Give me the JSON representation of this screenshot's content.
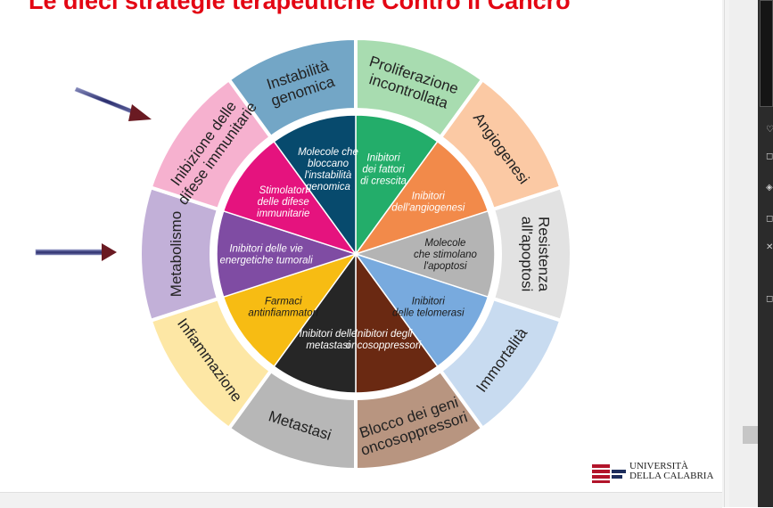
{
  "slide": {
    "title": "Le dieci strategie terapeutiche Contro il Cancro"
  },
  "logo": {
    "line1": "UNIVERSITÀ",
    "line2": "DELLA CALABRIA"
  },
  "wheel": {
    "outer": [
      {
        "lines": [
          "Proliferazione",
          "incontrollata"
        ],
        "color": "#a8dcb0"
      },
      {
        "lines": [
          "Angiogenesi"
        ],
        "color": "#fbc9a4"
      },
      {
        "lines": [
          "Resistenza",
          "all'apoptosi"
        ],
        "color": "#e2e2e2"
      },
      {
        "lines": [
          "Immortalità"
        ],
        "color": "#c8dbf0"
      },
      {
        "lines": [
          "Blocco dei geni",
          "oncosoppressori"
        ],
        "color": "#b89580"
      },
      {
        "lines": [
          "Metastasi"
        ],
        "color": "#b7b7b7"
      },
      {
        "lines": [
          "Infiammazione"
        ],
        "color": "#fde7a5"
      },
      {
        "lines": [
          "Metabolismo"
        ],
        "color": "#c2b0d8"
      },
      {
        "lines": [
          "Inibizione delle",
          "difese immunitarie"
        ],
        "color": "#f6b1cf"
      },
      {
        "lines": [
          "Instabilità",
          "genomica"
        ],
        "color": "#73a6c6"
      }
    ],
    "inner": [
      {
        "lines": [
          "Inibitori",
          "dei fattori",
          "di crescita"
        ],
        "color": "#23ad6a"
      },
      {
        "lines": [
          "Inibitori",
          "dell'angiogenesi"
        ],
        "color": "#f28a4a"
      },
      {
        "lines": [
          "Molecole",
          "che stimolano",
          "l'apoptosi"
        ],
        "color": "#b4b4b4"
      },
      {
        "lines": [
          "Inibitori",
          "delle telomerasi"
        ],
        "color": "#78aade"
      },
      {
        "lines": [
          "Inibitori degli",
          "oncosoppressori"
        ],
        "color": "#6a2912"
      },
      {
        "lines": [
          "Inibitori delle",
          "metastasi"
        ],
        "color": "#262626"
      },
      {
        "lines": [
          "Farmaci",
          "antinfiammatori"
        ],
        "color": "#f7bc13"
      },
      {
        "lines": [
          "Inibitori delle vie",
          "energetiche tumorali"
        ],
        "color": "#7f4ca3"
      },
      {
        "lines": [
          "Stimolatori",
          "delle difese",
          "immunitarie"
        ],
        "color": "#e5137e"
      },
      {
        "lines": [
          "Molecole che",
          "bloccano",
          "l'instabilità",
          "genomica"
        ],
        "color": "#074a6d"
      }
    ]
  },
  "side_panel": {
    "icons": [
      "♡",
      "◻",
      "◈",
      "◻",
      "✕",
      "◻"
    ]
  }
}
